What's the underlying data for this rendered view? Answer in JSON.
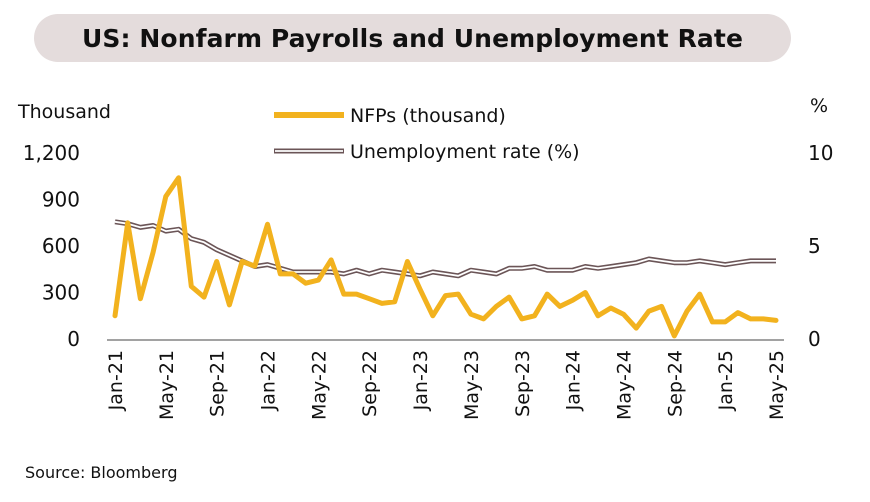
{
  "title": "US: Nonfarm Payrolls and Unemployment Rate",
  "source": "Source: Bloomberg",
  "colors": {
    "nfp": "#f2b21e",
    "unemp_outer": "#6b5557",
    "unemp_inner": "#ffffff",
    "title_bg": "#e4dcdc"
  },
  "chart_data": {
    "type": "line",
    "left_axis_title": "Thousand",
    "right_axis_title": "%",
    "left_ylim": [
      0,
      1200
    ],
    "right_ylim": [
      0,
      10
    ],
    "left_ticks": [
      "1,200",
      "900",
      "600",
      "300",
      "0"
    ],
    "right_ticks": [
      "10",
      "5",
      "0"
    ],
    "x_tick_labels": [
      "Jan-21",
      "May-21",
      "Sep-21",
      "Jan-22",
      "May-22",
      "Sep-22",
      "Jan-23",
      "May-23",
      "Sep-23",
      "Jan-24",
      "May-24",
      "Sep-24",
      "Jan-25",
      "May-25"
    ],
    "legend": [
      "NFPs (thousand)",
      "Unemployment rate (%)"
    ],
    "legend_position": "top-center",
    "grid": false,
    "x": [
      "Jan-21",
      "Feb-21",
      "Mar-21",
      "Apr-21",
      "May-21",
      "Jun-21",
      "Jul-21",
      "Aug-21",
      "Sep-21",
      "Oct-21",
      "Nov-21",
      "Dec-21",
      "Jan-22",
      "Feb-22",
      "Mar-22",
      "Apr-22",
      "May-22",
      "Jun-22",
      "Jul-22",
      "Aug-22",
      "Sep-22",
      "Oct-22",
      "Nov-22",
      "Dec-22",
      "Jan-23",
      "Feb-23",
      "Mar-23",
      "Apr-23",
      "May-23",
      "Jun-23",
      "Jul-23",
      "Aug-23",
      "Sep-23",
      "Oct-23",
      "Nov-23",
      "Dec-23",
      "Jan-24",
      "Feb-24",
      "Mar-24",
      "Apr-24",
      "May-24",
      "Jun-24",
      "Jul-24",
      "Aug-24",
      "Sep-24",
      "Oct-24",
      "Nov-24",
      "Dec-24",
      "Jan-25",
      "Feb-25",
      "Mar-25",
      "Apr-25",
      "May-25"
    ],
    "series": [
      {
        "name": "NFPs (thousand)",
        "axis": "left",
        "values": [
          150,
          750,
          260,
          560,
          920,
          1040,
          340,
          270,
          500,
          220,
          500,
          470,
          740,
          420,
          420,
          360,
          380,
          510,
          290,
          290,
          260,
          230,
          240,
          500,
          320,
          150,
          280,
          290,
          160,
          130,
          210,
          270,
          130,
          150,
          290,
          210,
          250,
          300,
          150,
          200,
          160,
          70,
          180,
          210,
          20,
          180,
          290,
          110,
          110,
          170,
          130,
          130,
          120
        ]
      },
      {
        "name": "Unemployment rate (%)",
        "axis": "right",
        "values": [
          6.3,
          6.2,
          6.0,
          6.1,
          5.8,
          5.9,
          5.4,
          5.2,
          4.8,
          4.5,
          4.2,
          3.9,
          4.0,
          3.8,
          3.6,
          3.6,
          3.6,
          3.6,
          3.5,
          3.7,
          3.5,
          3.7,
          3.6,
          3.5,
          3.4,
          3.6,
          3.5,
          3.4,
          3.7,
          3.6,
          3.5,
          3.8,
          3.8,
          3.9,
          3.7,
          3.7,
          3.7,
          3.9,
          3.8,
          3.9,
          4.0,
          4.1,
          4.3,
          4.2,
          4.1,
          4.1,
          4.2,
          4.1,
          4.0,
          4.1,
          4.2,
          4.2,
          4.2
        ]
      }
    ]
  }
}
